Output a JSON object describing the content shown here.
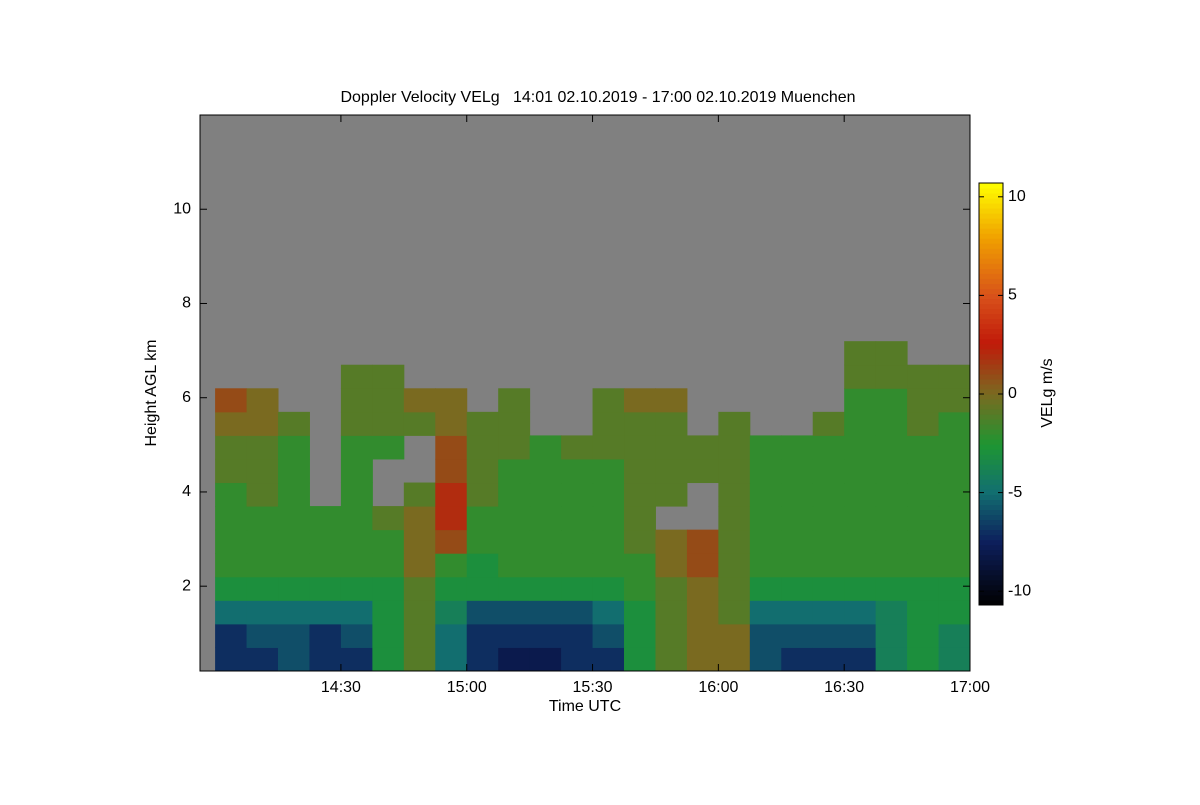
{
  "chart_data": {
    "type": "heatmap",
    "title": "Doppler Velocity VELg   14:01 02.10.2019 - 17:00 02.10.2019 Muenchen",
    "x_label": "Time UTC",
    "y_label": "Height AGL km",
    "colorbar_label": "VELg m/s",
    "background_color": "#808080",
    "xlim": [
      13.94,
      17.0
    ],
    "ylim": [
      0.2,
      12
    ],
    "clim": [
      -10.7,
      10.7
    ],
    "xticks": [
      {
        "value": 14.5,
        "label": "14:30"
      },
      {
        "value": 15.0,
        "label": "15:00"
      },
      {
        "value": 15.5,
        "label": "15:30"
      },
      {
        "value": 16.0,
        "label": "16:00"
      },
      {
        "value": 16.5,
        "label": "16:30"
      },
      {
        "value": 17.0,
        "label": "17:00"
      }
    ],
    "yticks": [
      2,
      4,
      6,
      8,
      10
    ],
    "cticks": [
      -10,
      -5,
      0,
      5,
      10
    ],
    "x_bins": [
      14.0,
      14.125,
      14.25,
      14.375,
      14.5,
      14.625,
      14.75,
      14.875,
      15.0,
      15.125,
      15.25,
      15.375,
      15.5,
      15.625,
      15.75,
      15.875,
      16.0,
      16.125,
      16.25,
      16.375,
      16.5,
      16.625,
      16.75,
      16.875,
      17.0
    ],
    "y_bins": [
      0.2,
      0.7,
      1.2,
      1.7,
      2.2,
      2.7,
      3.2,
      3.7,
      4.2,
      4.7,
      5.2,
      5.7,
      6.2,
      6.7,
      7.2
    ],
    "values": [
      [
        -7,
        -7,
        -6,
        -7,
        -7,
        -3,
        -1,
        -5,
        -7,
        -8,
        -8,
        -7,
        -7,
        -3,
        -1,
        0,
        0,
        -6,
        -7,
        -7,
        -7,
        -4,
        -3,
        -4
      ],
      [
        -7,
        -6,
        -6,
        -7,
        -6,
        -3,
        -1,
        -5,
        -7,
        -7,
        -7,
        -7,
        -6,
        -3,
        -1,
        0,
        0,
        -6,
        -6,
        -6,
        -6,
        -4,
        -3,
        -4
      ],
      [
        -5,
        -5,
        -5,
        -5,
        -5,
        -3,
        -1,
        -4,
        -6,
        -6,
        -6,
        -6,
        -5,
        -3,
        -1,
        0,
        -1,
        -5,
        -5,
        -5,
        -5,
        -4,
        -3,
        -3
      ],
      [
        -3,
        -3,
        -3,
        -3,
        -3,
        -3,
        -1,
        -3,
        -3,
        -3,
        -3,
        -3,
        -3,
        -2,
        -1,
        0,
        -1,
        -3,
        -3,
        -3,
        -3,
        -3,
        -3,
        -3
      ],
      [
        -2,
        -2,
        -2,
        -2,
        -2,
        -2,
        0,
        -2,
        -3,
        -2,
        -2,
        -2,
        -2,
        -2,
        0,
        1,
        -1,
        -2,
        -2,
        -2,
        -2,
        -2,
        -2,
        -2
      ],
      [
        -2,
        -2,
        -2,
        -2,
        -2,
        -2,
        0,
        1,
        -2,
        -2,
        -2,
        -2,
        -2,
        -1,
        0,
        1,
        -1,
        -2,
        -2,
        -2,
        -2,
        -2,
        -2,
        -2
      ],
      [
        -2,
        -2,
        -2,
        -2,
        -2,
        -1,
        0,
        2,
        -2,
        -2,
        -2,
        -2,
        -2,
        -1,
        null,
        null,
        -1,
        -2,
        -2,
        -2,
        -2,
        -2,
        -2,
        -2
      ],
      [
        -2,
        -1,
        -2,
        null,
        -2,
        null,
        -1,
        2,
        -1,
        -2,
        -2,
        -2,
        -2,
        -1,
        -1,
        null,
        -1,
        -2,
        -2,
        -2,
        -2,
        -2,
        -2,
        -2
      ],
      [
        -1,
        -1,
        -2,
        null,
        -2,
        null,
        null,
        1,
        -1,
        -2,
        -2,
        -2,
        -2,
        -1,
        -1,
        -1,
        -1,
        -2,
        -2,
        -2,
        -2,
        -2,
        -2,
        -2
      ],
      [
        -1,
        -1,
        -2,
        null,
        -2,
        -2,
        null,
        1,
        -1,
        -1,
        -2,
        -1,
        -1,
        -1,
        -1,
        -1,
        -1,
        -2,
        -2,
        -2,
        -2,
        -2,
        -2,
        -2
      ],
      [
        0,
        0,
        -1,
        null,
        -1,
        -1,
        -1,
        0,
        -1,
        -1,
        null,
        null,
        -1,
        -1,
        -1,
        null,
        -1,
        null,
        null,
        -1,
        -2,
        -2,
        -1,
        -2
      ],
      [
        1,
        0,
        null,
        null,
        -1,
        -1,
        0,
        0,
        null,
        -1,
        null,
        null,
        -1,
        0,
        0,
        null,
        null,
        null,
        null,
        null,
        -2,
        -2,
        -1,
        -1
      ],
      [
        null,
        null,
        null,
        null,
        -1,
        -1,
        null,
        null,
        null,
        null,
        null,
        null,
        null,
        null,
        null,
        null,
        null,
        null,
        null,
        null,
        -1,
        -1,
        -1,
        -1
      ],
      [
        null,
        null,
        null,
        null,
        null,
        null,
        null,
        null,
        null,
        null,
        null,
        null,
        null,
        null,
        null,
        null,
        null,
        null,
        null,
        null,
        -1,
        -1,
        null,
        null
      ]
    ]
  }
}
